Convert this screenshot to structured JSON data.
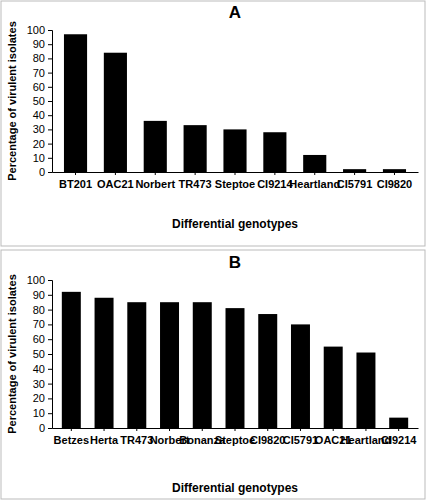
{
  "chart_data": [
    {
      "type": "bar",
      "title": "A",
      "x_label": "Differential genotypes",
      "y_label": "Percentage of virulent isolates",
      "categories": [
        "BT201",
        "OAC21",
        "Norbert",
        "TR473",
        "Steptoe",
        "CI9214",
        "Heartland",
        "CI5791",
        "CI9820"
      ],
      "values": [
        97,
        84,
        36,
        33,
        30,
        28,
        12,
        2,
        2
      ],
      "color": "#000000",
      "ylim": [
        0,
        100
      ],
      "yticks": [
        0,
        10,
        20,
        30,
        40,
        50,
        60,
        70,
        80,
        90,
        100
      ],
      "grid": false
    },
    {
      "type": "bar",
      "title": "B",
      "x_label": "Differential genotypes",
      "y_label": "Percentage of virulent isolates",
      "categories": [
        "Betzes",
        "Herta",
        "TR473",
        "Norbert",
        "Bonanza",
        "Steptoe",
        "CI9820",
        "CI5791",
        "OAC21",
        "Heartland",
        "CI9214"
      ],
      "values": [
        92,
        88,
        85,
        85,
        85,
        81,
        77,
        70,
        55,
        51,
        7
      ],
      "color": "#000000",
      "ylim": [
        0,
        100
      ],
      "yticks": [
        0,
        10,
        20,
        30,
        40,
        50,
        60,
        70,
        80,
        90,
        100
      ],
      "grid": false
    }
  ]
}
